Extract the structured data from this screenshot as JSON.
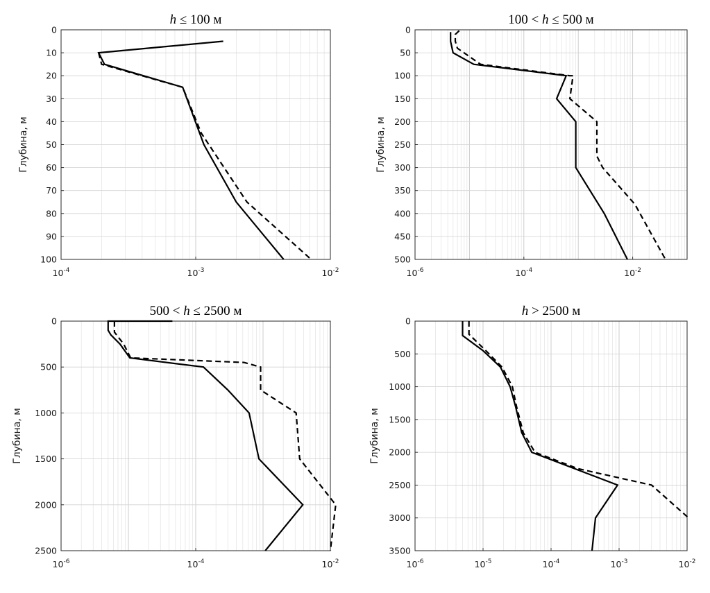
{
  "chart_data": [
    {
      "type": "line",
      "title": "h ≤ 100 м",
      "title_parts": [
        "h",
        " ≤ 100 м"
      ],
      "xscale": "log",
      "xlim": [
        0.0001,
        0.01
      ],
      "x_ticks": [
        {
          "value": 0.0001,
          "base": "10",
          "exp": "-4"
        },
        {
          "value": 0.001,
          "base": "10",
          "exp": "-3"
        },
        {
          "value": 0.01,
          "base": "10",
          "exp": "-2"
        }
      ],
      "ylabel": "Глубина, м",
      "ylim": [
        0,
        100
      ],
      "y_reversed": true,
      "y_ticks": [
        "0",
        "10",
        "20",
        "30",
        "40",
        "50",
        "60",
        "70",
        "80",
        "90",
        "100"
      ],
      "grid": true,
      "series": [
        {
          "name": "solid",
          "style": "solid",
          "points": [
            [
              0.0016,
              5
            ],
            [
              0.00019,
              10
            ],
            [
              0.00021,
              15
            ],
            [
              0.0008,
              25
            ],
            [
              0.00115,
              50
            ],
            [
              0.002,
              75
            ],
            [
              0.0045,
              100
            ]
          ]
        },
        {
          "name": "dashed",
          "style": "dashed",
          "points": [
            [
              0.00019,
              10
            ],
            [
              0.0002,
              15
            ],
            [
              0.0008,
              25
            ],
            [
              0.0011,
              45
            ],
            [
              0.0024,
              75
            ],
            [
              0.0072,
              100
            ]
          ]
        }
      ]
    },
    {
      "type": "line",
      "title": "100 < h ≤ 500 м",
      "title_parts": [
        "100 < ",
        "h",
        " ≤ 500 м"
      ],
      "xscale": "log",
      "xlim": [
        1e-06,
        0.1
      ],
      "x_ticks": [
        {
          "value": 1e-06,
          "base": "10",
          "exp": "-6"
        },
        {
          "value": 0.0001,
          "base": "10",
          "exp": "-4"
        },
        {
          "value": 0.01,
          "base": "10",
          "exp": "-2"
        }
      ],
      "ylabel": "Глубина, м",
      "ylim": [
        0,
        500
      ],
      "y_reversed": true,
      "y_ticks": [
        "0",
        "50",
        "100",
        "150",
        "200",
        "250",
        "300",
        "350",
        "400",
        "450",
        "500"
      ],
      "grid": true,
      "series": [
        {
          "name": "solid",
          "style": "solid",
          "points": [
            [
              4.5e-06,
              5
            ],
            [
              4.5e-06,
              25
            ],
            [
              5e-06,
              50
            ],
            [
              1.2e-05,
              75
            ],
            [
              0.0006,
              100
            ],
            [
              0.0004,
              150
            ],
            [
              0.0009,
              200
            ],
            [
              0.0009,
              300
            ],
            [
              0.003,
              400
            ],
            [
              0.008,
              500
            ]
          ]
        },
        {
          "name": "dashed",
          "style": "dashed",
          "points": [
            [
              6.5e-06,
              2
            ],
            [
              5.5e-06,
              10
            ],
            [
              5.5e-06,
              25
            ],
            [
              6e-06,
              40
            ],
            [
              1.6e-05,
              75
            ],
            [
              0.0007,
              100
            ],
            [
              0.0008,
              100
            ],
            [
              0.0007,
              150
            ],
            [
              0.0022,
              200
            ],
            [
              0.0022,
              275
            ],
            [
              0.0028,
              300
            ],
            [
              0.011,
              380
            ],
            [
              0.04,
              500
            ]
          ]
        }
      ]
    },
    {
      "type": "line",
      "title": "500 < h ≤ 2500 м",
      "title_parts": [
        "500 < ",
        "h",
        " ≤ 2500 м"
      ],
      "xscale": "log",
      "xlim": [
        1e-06,
        0.01
      ],
      "x_ticks": [
        {
          "value": 1e-06,
          "base": "10",
          "exp": "-6"
        },
        {
          "value": 0.0001,
          "base": "10",
          "exp": "-4"
        },
        {
          "value": 0.01,
          "base": "10",
          "exp": "-2"
        }
      ],
      "ylabel": "Глубина, м",
      "ylim": [
        0,
        2500
      ],
      "y_reversed": true,
      "y_ticks": [
        "0",
        "500",
        "1000",
        "1500",
        "2000",
        "2500"
      ],
      "grid": true,
      "series": [
        {
          "name": "solid",
          "style": "solid",
          "points": [
            [
              4.5e-05,
              0
            ],
            [
              5e-06,
              0
            ],
            [
              5e-06,
              100
            ],
            [
              5.5e-06,
              150
            ],
            [
              7.5e-06,
              250
            ],
            [
              1.05e-05,
              400
            ],
            [
              0.00013,
              500
            ],
            [
              0.0003,
              750
            ],
            [
              0.00062,
              1000
            ],
            [
              0.00087,
              1500
            ],
            [
              0.0039,
              2000
            ],
            [
              0.00108,
              2500
            ]
          ]
        },
        {
          "name": "dashed",
          "style": "dashed",
          "points": [
            [
              6.2e-06,
              0
            ],
            [
              6.2e-06,
              120
            ],
            [
              8.5e-06,
              250
            ],
            [
              1.08e-05,
              400
            ],
            [
              0.00052,
              450
            ],
            [
              0.00092,
              500
            ],
            [
              0.00092,
              750
            ],
            [
              0.0031,
              1000
            ],
            [
              0.0035,
              1500
            ],
            [
              0.012,
              2000
            ],
            [
              0.01,
              2500
            ]
          ]
        }
      ]
    },
    {
      "type": "line",
      "title": "h > 2500 м",
      "title_parts": [
        "h",
        " > 2500 м"
      ],
      "xscale": "log",
      "xlim": [
        1e-06,
        0.01
      ],
      "x_ticks": [
        {
          "value": 1e-06,
          "base": "10",
          "exp": "-6"
        },
        {
          "value": 1e-05,
          "base": "10",
          "exp": "-5"
        },
        {
          "value": 0.0001,
          "base": "10",
          "exp": "-4"
        },
        {
          "value": 0.001,
          "base": "10",
          "exp": "-3"
        },
        {
          "value": 0.01,
          "base": "10",
          "exp": "-2"
        }
      ],
      "ylabel": "Глубина, м",
      "ylim": [
        0,
        3500
      ],
      "y_reversed": true,
      "y_ticks": [
        "0",
        "500",
        "1000",
        "1500",
        "2000",
        "2500",
        "3000",
        "3500"
      ],
      "grid": true,
      "series": [
        {
          "name": "solid",
          "style": "solid",
          "points": [
            [
              5e-06,
              0
            ],
            [
              5e-06,
              220
            ],
            [
              1e-05,
              450
            ],
            [
              1.8e-05,
              700
            ],
            [
              2.5e-05,
              1000
            ],
            [
              3e-05,
              1300
            ],
            [
              3.7e-05,
              1700
            ],
            [
              5.2e-05,
              2000
            ],
            [
              0.00095,
              2500
            ],
            [
              0.00045,
              3000
            ],
            [
              0.0004,
              3500
            ]
          ]
        },
        {
          "name": "dashed",
          "style": "dashed",
          "points": [
            [
              6.2e-06,
              0
            ],
            [
              6.2e-06,
              200
            ],
            [
              1.1e-05,
              450
            ],
            [
              1.9e-05,
              700
            ],
            [
              2.7e-05,
              1000
            ],
            [
              3.1e-05,
              1300
            ],
            [
              3.9e-05,
              1700
            ],
            [
              5.8e-05,
              2000
            ],
            [
              0.00025,
              2250
            ],
            [
              0.003,
              2500
            ],
            [
              0.0105,
              3000
            ]
          ]
        }
      ]
    }
  ]
}
